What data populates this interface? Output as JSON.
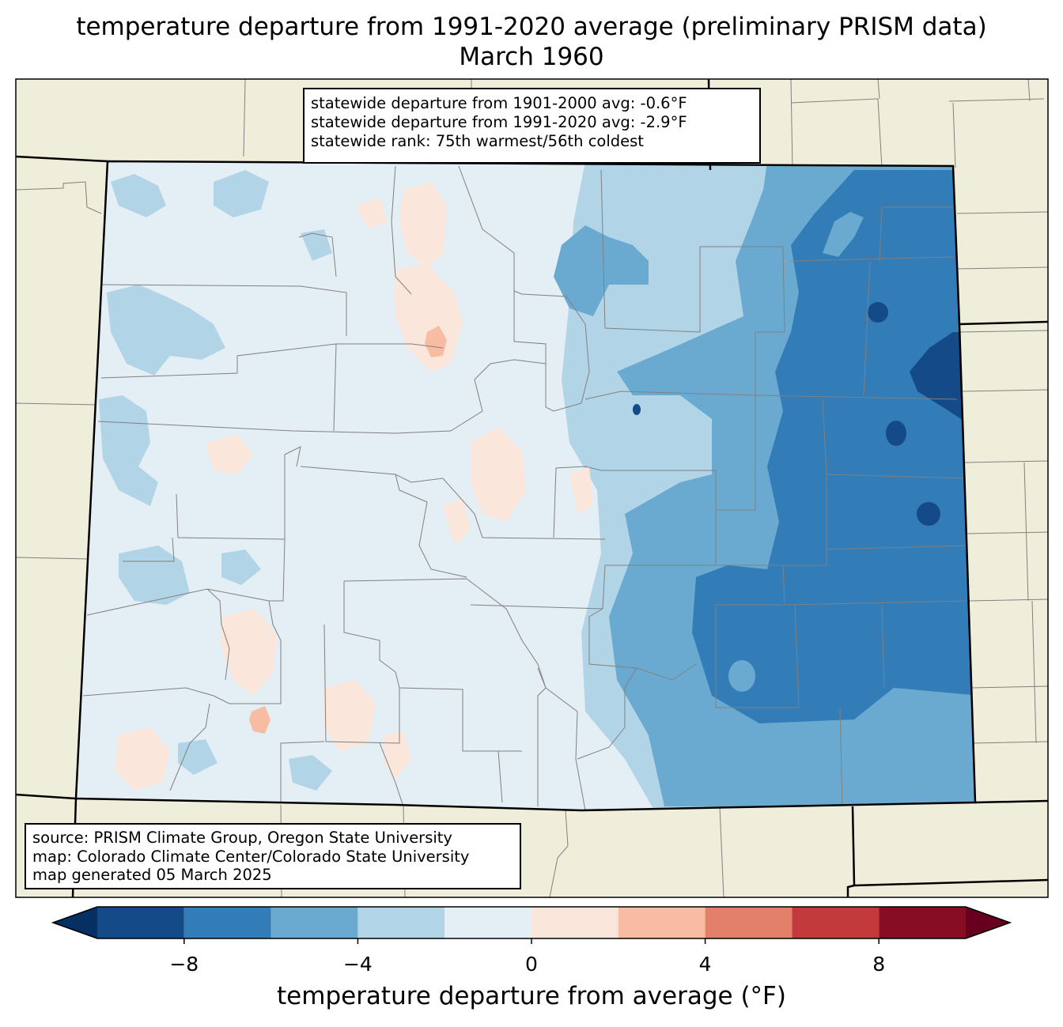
{
  "title": {
    "line1": "temperature departure from 1991-2020 average (preliminary PRISM data)",
    "line2": "March 1960"
  },
  "stats": {
    "line1": "statewide departure from 1901-2000 avg: -0.6°F",
    "line2": "statewide departure from 1991-2020 avg: -2.9°F",
    "line3": "statewide rank: 75th warmest/56th coldest"
  },
  "source": {
    "line1": "source: PRISM Climate Group, Oregon State University",
    "line2": "map: Colorado Climate Center/Colorado State University",
    "line3": "map generated 05 March 2025"
  },
  "colorbar": {
    "label": "temperature departure from average (°F)",
    "ticks": [
      "−8",
      "−4",
      "0",
      "4",
      "8"
    ],
    "tick_values": [
      -8,
      -4,
      0,
      4,
      8
    ],
    "range": [
      -10,
      10
    ],
    "bin_width": 2,
    "colors": [
      "#144a87",
      "#327cb8",
      "#6aaad1",
      "#b2d4e7",
      "#e4eef5",
      "#fbe6dc",
      "#f8bca3",
      "#e3806a",
      "#c23a3b",
      "#870d24"
    ],
    "under_color": "#053061",
    "over_color": "#67001f"
  },
  "map_colors": {
    "land": "#efeedb",
    "state_border": "#000000",
    "county_border": "#808080"
  }
}
